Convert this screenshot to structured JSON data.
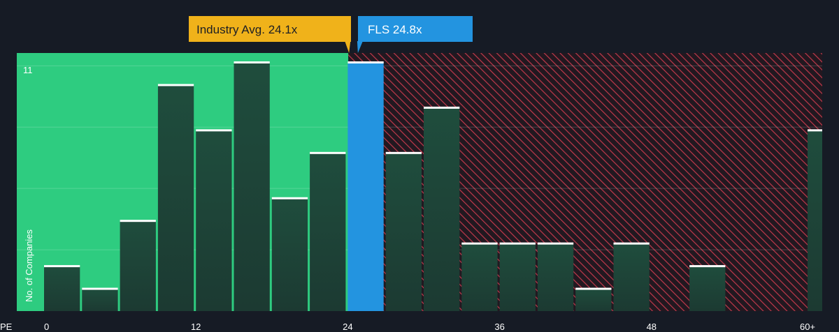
{
  "chart_data": {
    "type": "bar",
    "xlabel": "PE",
    "ylabel": "No. of Companies",
    "x_ticks": [
      "0",
      "12",
      "24",
      "36",
      "48",
      "60+"
    ],
    "y_ticks": [
      "11"
    ],
    "ylim": [
      0,
      11
    ],
    "bin_width": 3,
    "bins": [
      {
        "x_start": 0,
        "value": 2
      },
      {
        "x_start": 3,
        "value": 1
      },
      {
        "x_start": 6,
        "value": 4
      },
      {
        "x_start": 9,
        "value": 10
      },
      {
        "x_start": 12,
        "value": 8
      },
      {
        "x_start": 15,
        "value": 11
      },
      {
        "x_start": 18,
        "value": 5
      },
      {
        "x_start": 21,
        "value": 7
      },
      {
        "x_start": 24,
        "value": 11,
        "highlight": true
      },
      {
        "x_start": 27,
        "value": 7
      },
      {
        "x_start": 30,
        "value": 9
      },
      {
        "x_start": 33,
        "value": 3
      },
      {
        "x_start": 36,
        "value": 3
      },
      {
        "x_start": 39,
        "value": 3
      },
      {
        "x_start": 42,
        "value": 1
      },
      {
        "x_start": 45,
        "value": 3
      },
      {
        "x_start": 48,
        "value": 0
      },
      {
        "x_start": 51,
        "value": 2
      },
      {
        "x_start": 54,
        "value": 0
      },
      {
        "x_start": 57,
        "value": 0
      },
      {
        "x_start": 60,
        "value": 8
      }
    ],
    "industry_avg": {
      "label": "Industry Avg. 24.1x",
      "value": 24.1
    },
    "company": {
      "label": "FLS 24.8x",
      "value": 24.8
    },
    "grid": true,
    "colors": {
      "background": "#161b25",
      "undervalued_zone": "#2ecc80",
      "overvalued_zone": "#c0394b",
      "bar": "#1e4a3b",
      "bar_top": "#ffffff",
      "highlight_bar": "#2394e0",
      "industry_callout": "#f0b21a",
      "company_callout": "#2394e0"
    }
  }
}
